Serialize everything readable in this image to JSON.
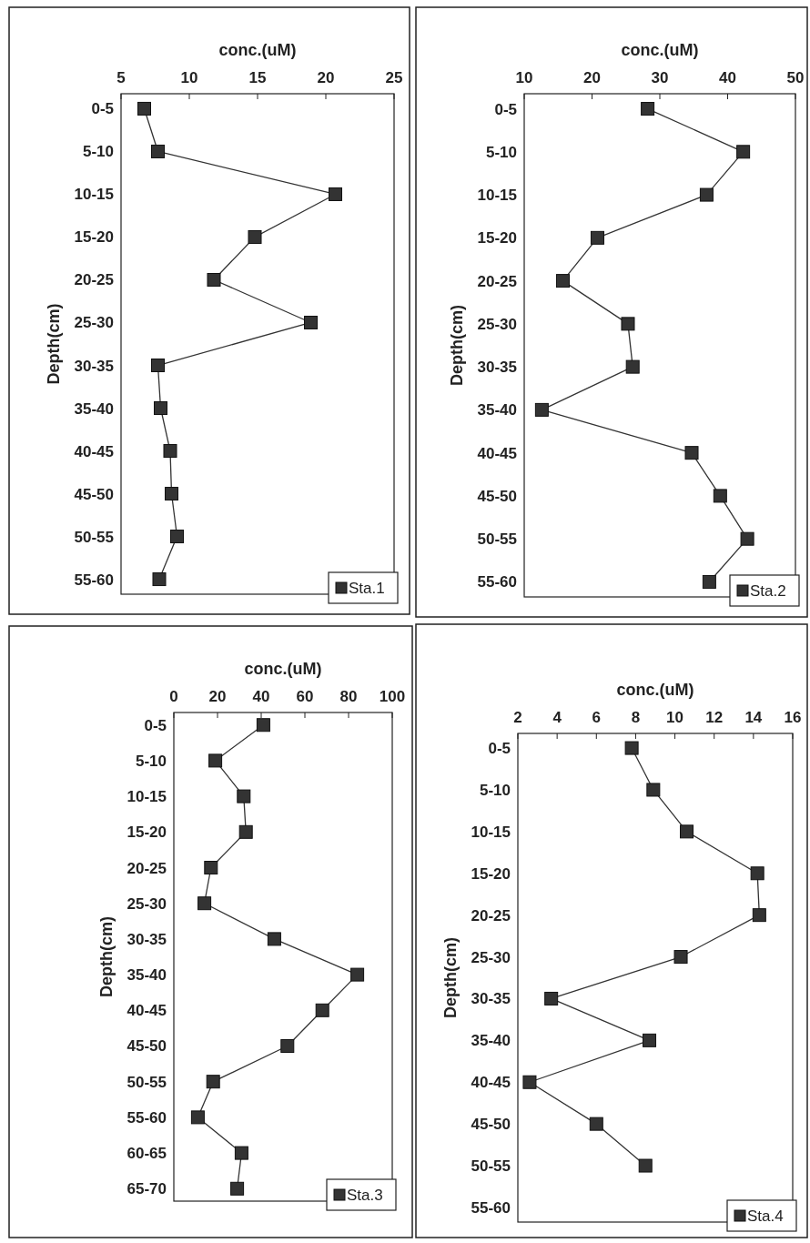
{
  "chart_data": [
    {
      "type": "line",
      "orientation": "horizontal",
      "xlabel": "conc.(uM)",
      "ylabel": "Depth(cm)",
      "categories": [
        "0-5",
        "5-10",
        "10-15",
        "15-20",
        "20-25",
        "25-30",
        "30-35",
        "35-40",
        "40-45",
        "45-50",
        "50-55",
        "55-60"
      ],
      "xlim": [
        5,
        25
      ],
      "xticks": [
        5,
        10,
        15,
        20,
        25
      ],
      "marker": "square",
      "legend": "bottom right",
      "series": [
        {
          "name": "Sta.1",
          "color": "#333333",
          "values": [
            6.7,
            7.7,
            20.7,
            14.8,
            11.8,
            18.9,
            7.7,
            7.9,
            8.6,
            8.7,
            9.1,
            7.8
          ]
        }
      ]
    },
    {
      "type": "line",
      "orientation": "horizontal",
      "xlabel": "conc.(uM)",
      "ylabel": "Depth(cm)",
      "categories": [
        "0-5",
        "5-10",
        "10-15",
        "15-20",
        "20-25",
        "25-30",
        "30-35",
        "35-40",
        "40-45",
        "45-50",
        "50-55",
        "55-60"
      ],
      "xlim": [
        10,
        50
      ],
      "xticks": [
        10,
        20,
        30,
        40,
        50
      ],
      "marker": "square",
      "legend": "bottom right",
      "series": [
        {
          "name": "Sta.2",
          "color": "#333333",
          "values": [
            28.2,
            42.3,
            36.9,
            20.8,
            15.7,
            25.3,
            26.0,
            12.6,
            34.7,
            38.9,
            42.9,
            37.3
          ]
        }
      ]
    },
    {
      "type": "line",
      "orientation": "horizontal",
      "xlabel": "conc.(uM)",
      "ylabel": "Depth(cm)",
      "categories": [
        "0-5",
        "5-10",
        "10-15",
        "15-20",
        "20-25",
        "25-30",
        "30-35",
        "35-40",
        "40-45",
        "45-50",
        "50-55",
        "55-60",
        "60-65",
        "65-70"
      ],
      "xlim": [
        0,
        100
      ],
      "xticks": [
        0,
        20,
        40,
        60,
        80,
        100
      ],
      "marker": "square",
      "legend": "bottom right",
      "series": [
        {
          "name": "Sta.3",
          "color": "#333333",
          "values": [
            41,
            19,
            32,
            33,
            17,
            14,
            46,
            84,
            68,
            52,
            18,
            11,
            31,
            29
          ]
        }
      ]
    },
    {
      "type": "line",
      "orientation": "horizontal",
      "xlabel": "conc.(uM)",
      "ylabel": "Depth(cm)",
      "categories": [
        "0-5",
        "5-10",
        "10-15",
        "15-20",
        "20-25",
        "25-30",
        "30-35",
        "35-40",
        "40-45",
        "45-50",
        "50-55",
        "55-60"
      ],
      "xlim": [
        2,
        16
      ],
      "xticks": [
        2,
        4,
        6,
        8,
        10,
        12,
        14,
        16
      ],
      "marker": "square",
      "legend": "bottom right",
      "series": [
        {
          "name": "Sta.4",
          "color": "#333333",
          "values": [
            7.8,
            8.9,
            10.6,
            14.2,
            14.3,
            10.3,
            3.7,
            8.7,
            2.6,
            6.0,
            8.5,
            null
          ]
        }
      ]
    }
  ]
}
